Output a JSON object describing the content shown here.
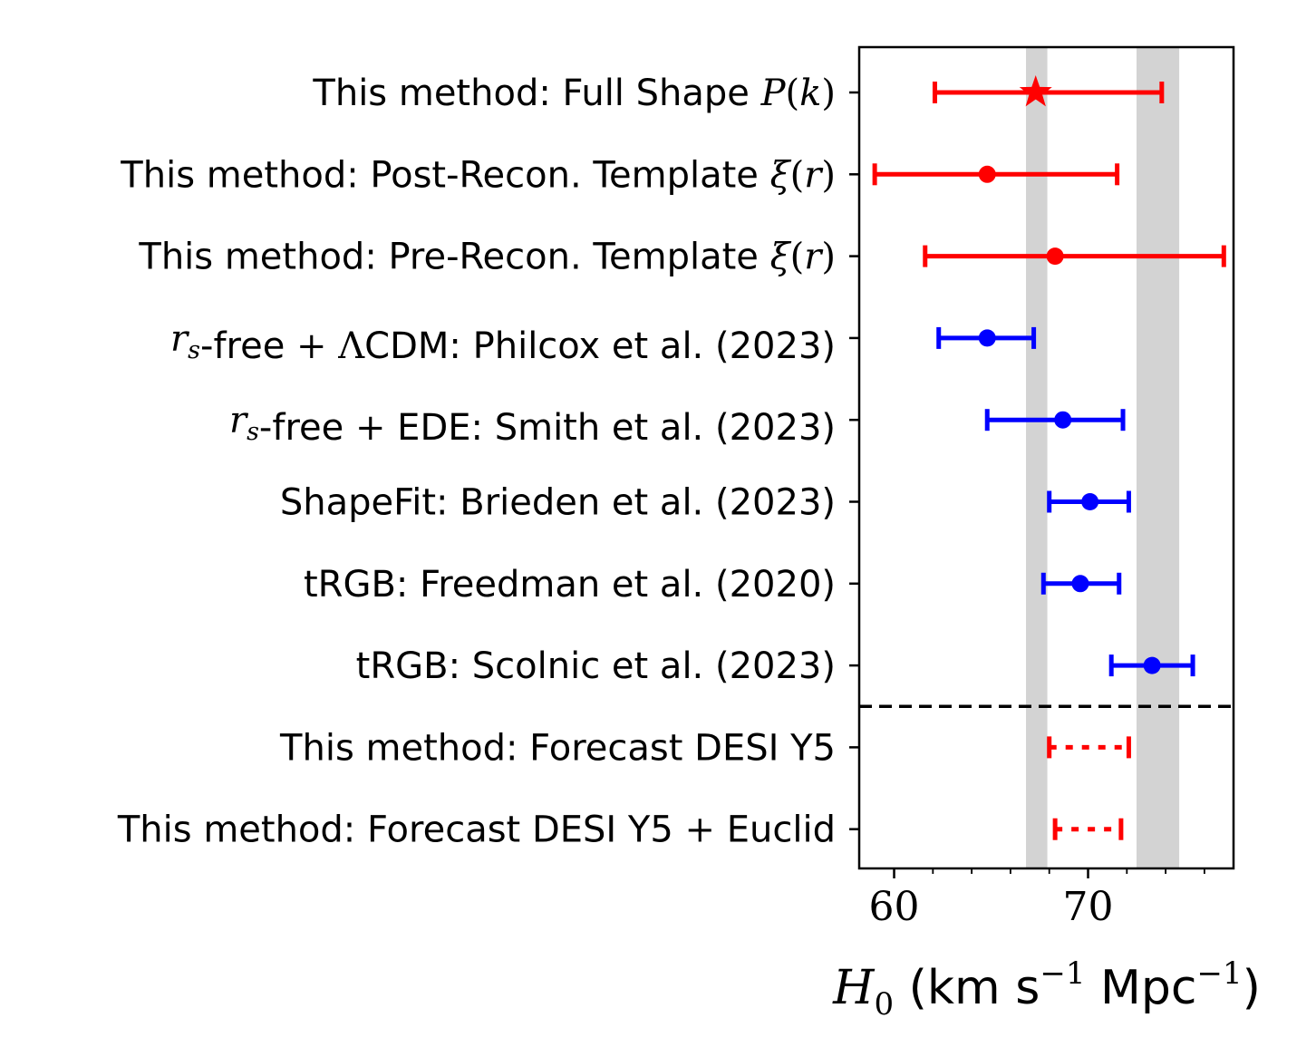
{
  "chart_data": {
    "type": "errorbar",
    "xlabel": {
      "symbol": "H",
      "sub": "0",
      "unit_prefix": " (km s",
      "exp": "−1",
      "unit_mid": " Mpc",
      "close": ")"
    },
    "xlim": [
      58.2,
      77.5
    ],
    "xticks": [
      60,
      70
    ],
    "xtick_labels": [
      "60",
      "70"
    ],
    "minor_xticks": [
      62,
      64,
      66,
      68,
      72,
      74,
      76
    ],
    "bands": [
      {
        "from": 66.8,
        "to": 67.9,
        "color": "#d3d3d3"
      },
      {
        "from": 72.5,
        "to": 74.7,
        "color": "#d3d3d3"
      }
    ],
    "separator_after_row": 8,
    "rows": [
      {
        "label_parts": [
          {
            "t": "This method: Full Shape "
          },
          {
            "t": "P",
            "c": "math"
          },
          {
            "t": "(",
            "c": "mathup"
          },
          {
            "t": "k",
            "c": "math"
          },
          {
            "t": ")",
            "c": "mathup"
          }
        ],
        "value": 67.3,
        "low": 62.1,
        "high": 73.8,
        "marker": "star",
        "color": "#ff0000",
        "line": "solid"
      },
      {
        "label_parts": [
          {
            "t": "This method: Post-Recon. Template "
          },
          {
            "t": "ξ",
            "c": "math"
          },
          {
            "t": "(",
            "c": "mathup"
          },
          {
            "t": "r",
            "c": "math"
          },
          {
            "t": ")",
            "c": "mathup"
          }
        ],
        "value": 64.8,
        "low": 59.0,
        "high": 71.5,
        "marker": "circle",
        "color": "#ff0000",
        "line": "solid"
      },
      {
        "label_parts": [
          {
            "t": "This method: Pre-Recon. Template "
          },
          {
            "t": "ξ",
            "c": "math"
          },
          {
            "t": "(",
            "c": "mathup"
          },
          {
            "t": "r",
            "c": "math"
          },
          {
            "t": ")",
            "c": "mathup"
          }
        ],
        "value": 68.3,
        "low": 61.6,
        "high": 77.0,
        "marker": "circle",
        "color": "#ff0000",
        "line": "solid"
      },
      {
        "label_parts": [
          {
            "t": "r",
            "c": "math"
          },
          {
            "t": "s",
            "c": "sub"
          },
          {
            "t": "-free "
          },
          {
            "t": "+ Λ",
            "c": "mathup"
          },
          {
            "t": "CDM: Philcox et al. (2023)"
          }
        ],
        "value": 64.8,
        "low": 62.3,
        "high": 67.2,
        "marker": "circle",
        "color": "#0000ff",
        "line": "solid"
      },
      {
        "label_parts": [
          {
            "t": "r",
            "c": "math"
          },
          {
            "t": "s",
            "c": "sub"
          },
          {
            "t": "-free "
          },
          {
            "t": "+",
            "c": "mathup"
          },
          {
            "t": " EDE: Smith et al. (2023)"
          }
        ],
        "value": 68.7,
        "low": 64.8,
        "high": 71.8,
        "marker": "circle",
        "color": "#0000ff",
        "line": "solid"
      },
      {
        "label_parts": [
          {
            "t": "ShapeFit: Brieden et al. (2023)"
          }
        ],
        "value": 70.1,
        "low": 68.0,
        "high": 72.1,
        "marker": "circle",
        "color": "#0000ff",
        "line": "solid"
      },
      {
        "label_parts": [
          {
            "t": "tRGB: Freedman et al. (2020)"
          }
        ],
        "value": 69.6,
        "low": 67.7,
        "high": 71.6,
        "marker": "circle",
        "color": "#0000ff",
        "line": "solid"
      },
      {
        "label_parts": [
          {
            "t": "tRGB: Scolnic et al. (2023)"
          }
        ],
        "value": 73.3,
        "low": 71.2,
        "high": 75.4,
        "marker": "circle",
        "color": "#0000ff",
        "line": "solid"
      },
      {
        "label_parts": [
          {
            "t": "This method: Forecast DESI Y5"
          }
        ],
        "value": null,
        "low": 68.0,
        "high": 72.1,
        "marker": "none",
        "color": "#ff0000",
        "line": "dotted"
      },
      {
        "label_parts": [
          {
            "t": "This method: Forecast DESI Y5 "
          },
          {
            "t": "+",
            "c": "mathup"
          },
          {
            "t": " Euclid"
          }
        ],
        "value": null,
        "low": 68.3,
        "high": 71.7,
        "marker": "none",
        "color": "#ff0000",
        "line": "dotted"
      }
    ]
  }
}
